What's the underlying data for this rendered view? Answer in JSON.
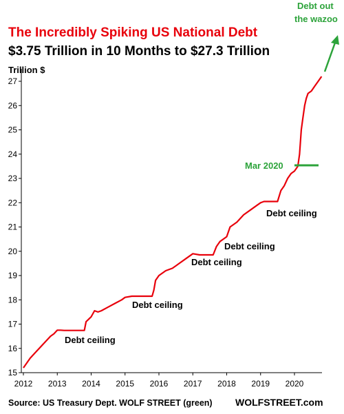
{
  "chart_data": {
    "type": "line",
    "title": "The Incredibly Spiking US National Debt",
    "subtitle": "$3.75 Trillion  in 10 Months  to $27.3 Trillion",
    "ylabel": "Trillion $",
    "xlim": [
      2012,
      2020.95
    ],
    "ylim": [
      15,
      27.3
    ],
    "x_ticks": [
      "2012",
      "2013",
      "2014",
      "2015",
      "2016",
      "2017",
      "2018",
      "2019",
      "2020"
    ],
    "y_ticks": [
      "15",
      "16",
      "17",
      "18",
      "19",
      "20",
      "21",
      "22",
      "23",
      "24",
      "25",
      "26",
      "27"
    ],
    "grid": false,
    "series": [
      {
        "color": "#e8000b",
        "x": [
          2012.0,
          2012.2,
          2012.4,
          2012.6,
          2012.8,
          2012.9,
          2013.0,
          2013.1,
          2013.2,
          2013.8,
          2013.85,
          2014.0,
          2014.1,
          2014.2,
          2014.3,
          2014.5,
          2014.7,
          2014.9,
          2015.0,
          2015.2,
          2015.8,
          2015.85,
          2015.9,
          2016.0,
          2016.2,
          2016.4,
          2016.6,
          2016.8,
          2017.0,
          2017.2,
          2017.6,
          2017.7,
          2017.8,
          2017.9,
          2018.0,
          2018.1,
          2018.3,
          2018.5,
          2018.7,
          2018.9,
          2019.0,
          2019.1,
          2019.2,
          2019.5,
          2019.6,
          2019.7,
          2019.8,
          2019.9,
          2020.0,
          2020.1,
          2020.15,
          2020.2,
          2020.25,
          2020.3,
          2020.35,
          2020.4,
          2020.5,
          2020.6,
          2020.7,
          2020.8
        ],
        "y": [
          15.2,
          15.6,
          15.9,
          16.2,
          16.5,
          16.6,
          16.75,
          16.75,
          16.74,
          16.74,
          17.1,
          17.3,
          17.55,
          17.5,
          17.55,
          17.7,
          17.85,
          18.0,
          18.1,
          18.15,
          18.15,
          18.4,
          18.8,
          19.0,
          19.2,
          19.3,
          19.5,
          19.7,
          19.9,
          19.85,
          19.85,
          20.2,
          20.4,
          20.5,
          20.6,
          21.0,
          21.2,
          21.5,
          21.7,
          21.9,
          22.0,
          22.05,
          22.05,
          22.05,
          22.5,
          22.7,
          23.0,
          23.2,
          23.3,
          23.5,
          24.0,
          25.0,
          25.5,
          26.0,
          26.3,
          26.5,
          26.6,
          26.8,
          27.0,
          27.2
        ]
      }
    ],
    "annotations": {
      "ceiling_1": "Debt ceiling",
      "ceiling_2": "Debt ceiling",
      "ceiling_3": "Debt ceiling",
      "ceiling_4": "Debt ceiling",
      "ceiling_5": "Debt ceiling",
      "mar2020": "Mar 2020",
      "wazoo_line1": "Debt out",
      "wazoo_line2": "the wazoo"
    },
    "source": "Source: US Treasury Dept. WOLF STREET (green)",
    "brand": "WOLFSTREET.com"
  },
  "colors": {
    "title": "#e8000b",
    "line": "#e8000b",
    "accent": "#2ca33a"
  }
}
